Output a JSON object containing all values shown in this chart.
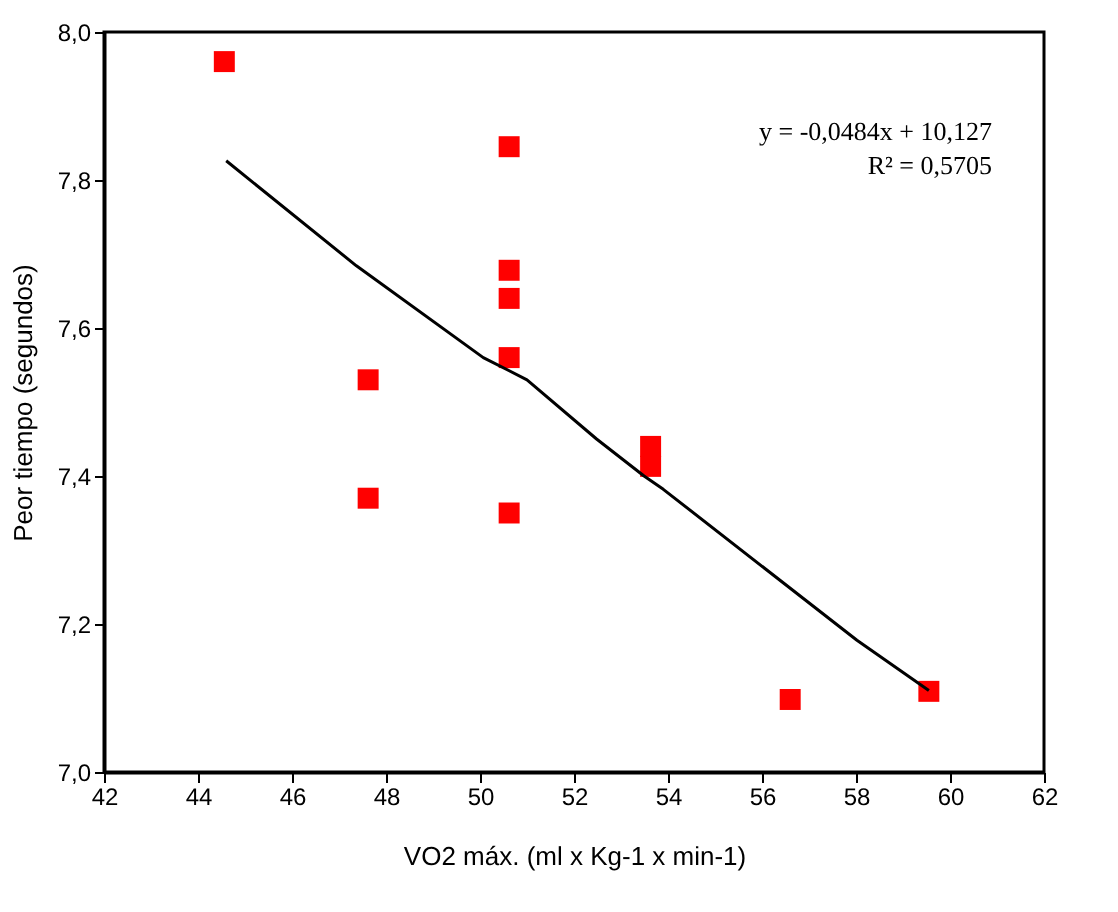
{
  "chart_data": {
    "type": "scatter",
    "xlabel": "VO2 máx. (ml x Kg-1 x min-1)",
    "ylabel": "Peor tiempo (segundos)",
    "xlim": [
      42,
      62
    ],
    "xticks": [
      42,
      44,
      46,
      48,
      50,
      52,
      54,
      56,
      58,
      60,
      62
    ],
    "ylim": [
      7.0,
      8.0
    ],
    "yticks": [
      {
        "value": 7.0,
        "label": "7,0"
      },
      {
        "value": 7.2,
        "label": "7,2"
      },
      {
        "value": 7.4,
        "label": "7,4"
      },
      {
        "value": 7.6,
        "label": "7,6"
      },
      {
        "value": 7.8,
        "label": "7,8"
      },
      {
        "value": 8.0,
        "label": "8,0"
      }
    ],
    "grid": false,
    "series": [
      {
        "marker": "square",
        "color": "#ff0000",
        "x": [
          44.56,
          47.62,
          47.62,
          50.62,
          50.62,
          50.62,
          50.62,
          50.62,
          53.63,
          53.63,
          56.6,
          59.55
        ],
        "values": [
          7.96,
          7.53,
          7.37,
          7.845,
          7.678,
          7.64,
          7.56,
          7.35,
          7.44,
          7.413,
          7.098,
          7.109
        ]
      },
      {
        "type": "line",
        "marker": "none",
        "line_style": "solid",
        "color": "#000000",
        "x": [
          44.6,
          47.37,
          50.07,
          51.0,
          52.48,
          53.49,
          53.9,
          58.02,
          59.55
        ],
        "values": [
          7.826,
          7.684,
          7.56,
          7.53,
          7.45,
          7.4,
          7.382,
          7.178,
          7.11
        ]
      }
    ],
    "annotations": [
      "y = -0,0484x + 10,127",
      "R² = 0,5705"
    ]
  }
}
